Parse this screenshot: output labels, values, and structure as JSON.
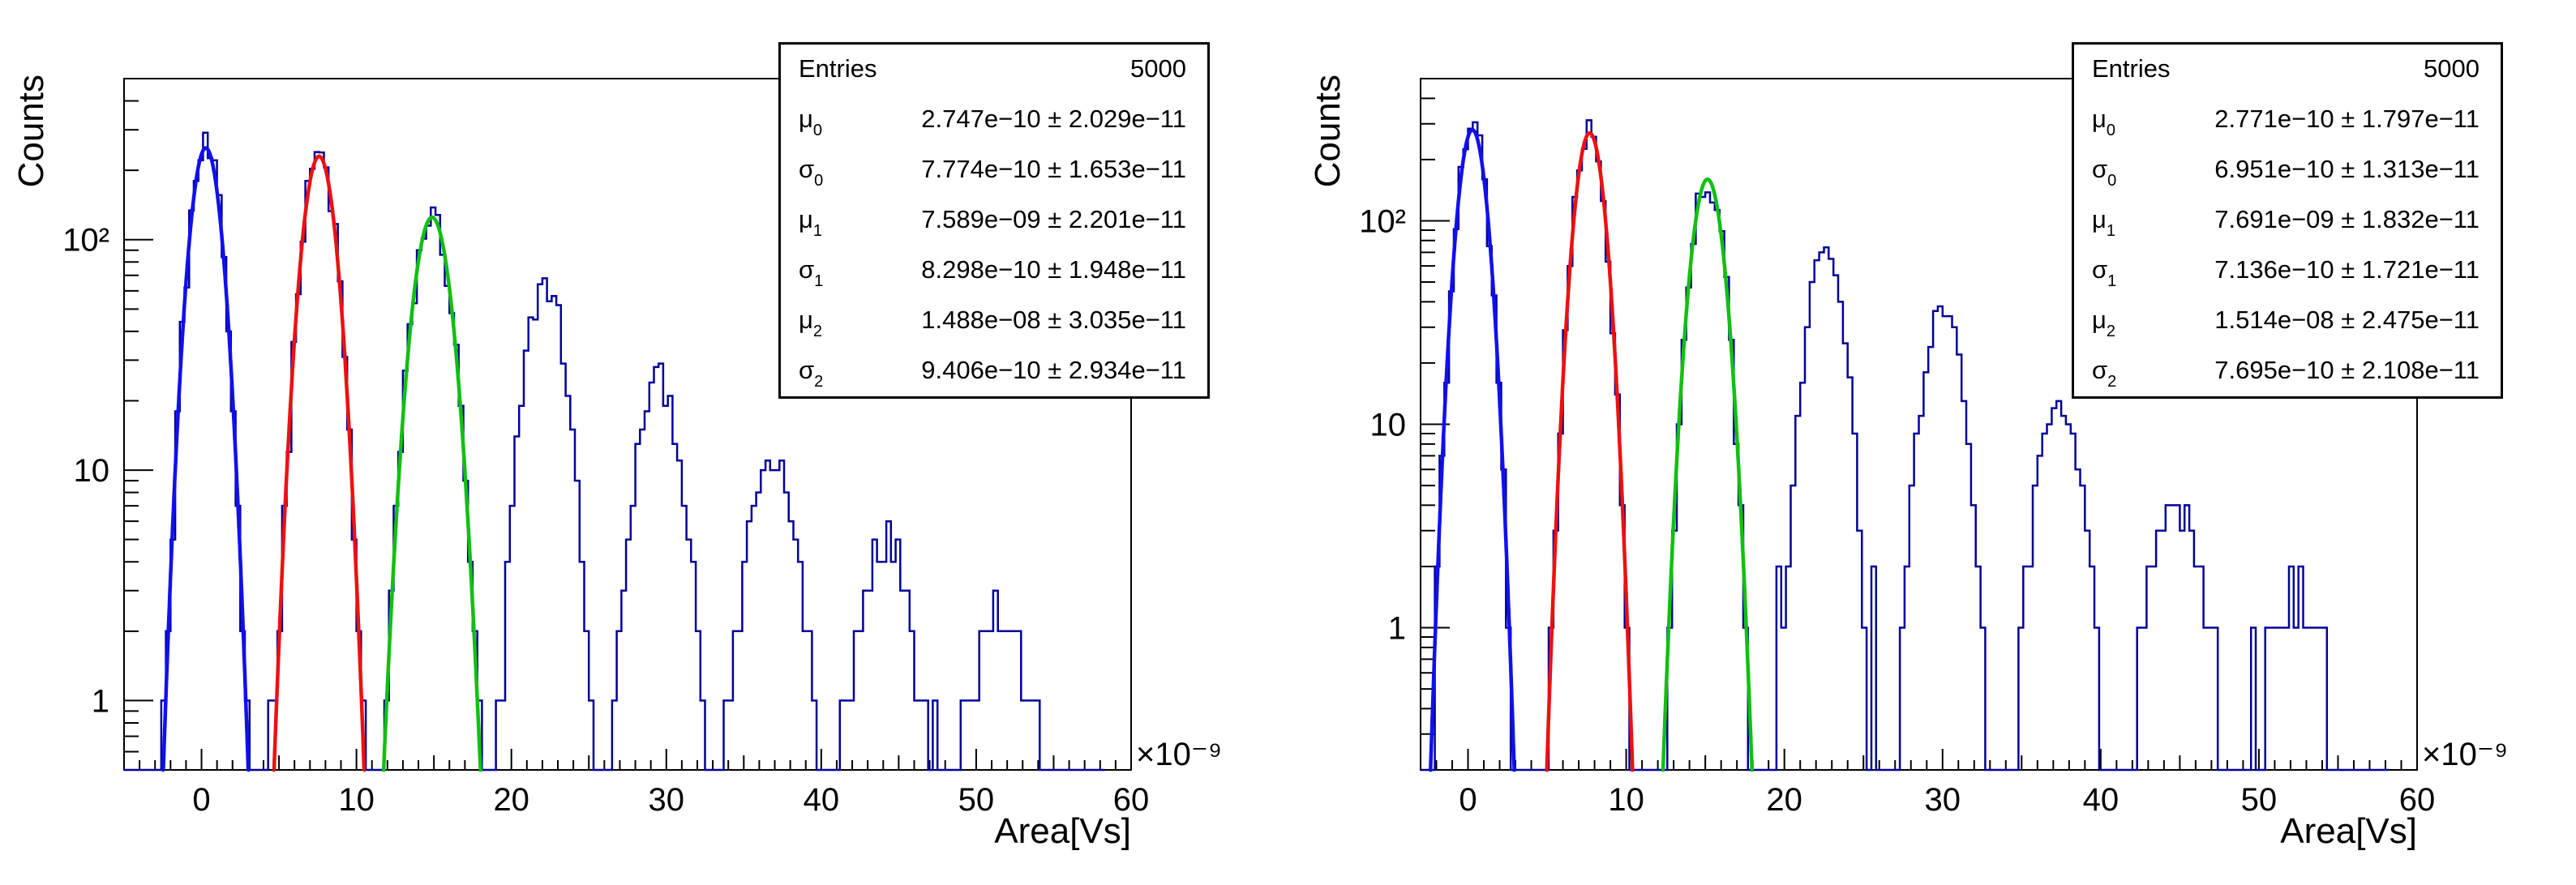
{
  "chart_data": [
    {
      "type": "histogram",
      "xlabel": "Area[Vs]",
      "ylabel": "Counts",
      "x_exponent": "×10⁻⁹",
      "x_range": [
        -5,
        60
      ],
      "y_range": [
        0.5,
        500
      ],
      "y_scale": "log",
      "x_ticks": [
        0,
        10,
        20,
        30,
        40,
        50,
        60
      ],
      "x_tick_labels": [
        "0",
        "10",
        "20",
        "30",
        "40",
        "50",
        "60"
      ],
      "y_ticks": [
        1,
        10,
        100
      ],
      "y_tick_labels": [
        "1",
        "10",
        "10²"
      ],
      "peaks": [
        {
          "mu": 0.27,
          "sigma": 0.78,
          "amp": 250
        },
        {
          "mu": 7.59,
          "sigma": 0.83,
          "amp": 230
        },
        {
          "mu": 14.88,
          "sigma": 0.94,
          "amp": 125
        },
        {
          "mu": 22.2,
          "sigma": 1.0,
          "amp": 65
        },
        {
          "mu": 29.5,
          "sigma": 1.1,
          "amp": 25
        },
        {
          "mu": 36.8,
          "sigma": 1.2,
          "amp": 11
        },
        {
          "mu": 44.1,
          "sigma": 1.3,
          "amp": 5
        },
        {
          "mu": 51.5,
          "sigma": 1.4,
          "amp": 2.5
        }
      ],
      "fits": [
        {
          "name": "Gauss 0",
          "mu": 0.2747,
          "sigma": 0.7774,
          "amp": 250,
          "color": "#1010ee"
        },
        {
          "name": "Gauss 1",
          "mu": 7.589,
          "sigma": 0.8298,
          "amp": 230,
          "color": "#ee1010"
        },
        {
          "name": "Gauss 2",
          "mu": 14.88,
          "sigma": 0.9406,
          "amp": 125,
          "color": "#10c010"
        }
      ],
      "hist_color": "#000099",
      "stats": {
        "entries_label": "Entries",
        "entries_value": "5000",
        "rows": [
          {
            "sym": "μ",
            "sub": "0",
            "value": "2.747e−10 ± 2.029e−11"
          },
          {
            "sym": "σ",
            "sub": "0",
            "value": "7.774e−10 ± 1.653e−11"
          },
          {
            "sym": "μ",
            "sub": "1",
            "value": "7.589e−09 ± 2.201e−11"
          },
          {
            "sym": "σ",
            "sub": "1",
            "value": "8.298e−10 ± 1.948e−11"
          },
          {
            "sym": "μ",
            "sub": "2",
            "value": "1.488e−08 ± 3.035e−11"
          },
          {
            "sym": "σ",
            "sub": "2",
            "value": "9.406e−10 ± 2.934e−11"
          }
        ]
      }
    },
    {
      "type": "histogram",
      "xlabel": "Area[Vs]",
      "ylabel": "Counts",
      "x_exponent": "×10⁻⁹",
      "x_range": [
        -3,
        60
      ],
      "y_range": [
        0.2,
        500
      ],
      "y_scale": "log",
      "x_ticks": [
        0,
        10,
        20,
        30,
        40,
        50,
        60
      ],
      "x_tick_labels": [
        "0",
        "10",
        "20",
        "30",
        "40",
        "50",
        "60"
      ],
      "y_ticks": [
        1,
        10,
        100
      ],
      "y_tick_labels": [
        "1",
        "10",
        "10²"
      ],
      "peaks": [
        {
          "mu": 0.28,
          "sigma": 0.7,
          "amp": 280
        },
        {
          "mu": 7.69,
          "sigma": 0.71,
          "amp": 270
        },
        {
          "mu": 15.14,
          "sigma": 0.77,
          "amp": 160
        },
        {
          "mu": 22.6,
          "sigma": 0.85,
          "amp": 80
        },
        {
          "mu": 30.0,
          "sigma": 0.95,
          "amp": 35
        },
        {
          "mu": 37.4,
          "sigma": 1.05,
          "amp": 13
        },
        {
          "mu": 44.8,
          "sigma": 1.2,
          "amp": 4
        },
        {
          "mu": 52.2,
          "sigma": 1.3,
          "amp": 1.5
        }
      ],
      "fits": [
        {
          "name": "Gauss 0",
          "mu": 0.2771,
          "sigma": 0.6951,
          "amp": 280,
          "color": "#1010ee"
        },
        {
          "name": "Gauss 1",
          "mu": 7.691,
          "sigma": 0.7136,
          "amp": 270,
          "color": "#ee1010"
        },
        {
          "name": "Gauss 2",
          "mu": 15.14,
          "sigma": 0.7695,
          "amp": 160,
          "color": "#10c010"
        }
      ],
      "hist_color": "#000099",
      "stats": {
        "entries_label": "Entries",
        "entries_value": "5000",
        "rows": [
          {
            "sym": "μ",
            "sub": "0",
            "value": "2.771e−10 ± 1.797e−11"
          },
          {
            "sym": "σ",
            "sub": "0",
            "value": "6.951e−10 ± 1.313e−11"
          },
          {
            "sym": "μ",
            "sub": "1",
            "value": "7.691e−09 ± 1.832e−11"
          },
          {
            "sym": "σ",
            "sub": "1",
            "value": "7.136e−10 ± 1.721e−11"
          },
          {
            "sym": "μ",
            "sub": "2",
            "value": "1.514e−08 ± 2.475e−11"
          },
          {
            "sym": "σ",
            "sub": "2",
            "value": "7.695e−10 ± 2.108e−11"
          }
        ]
      }
    }
  ]
}
